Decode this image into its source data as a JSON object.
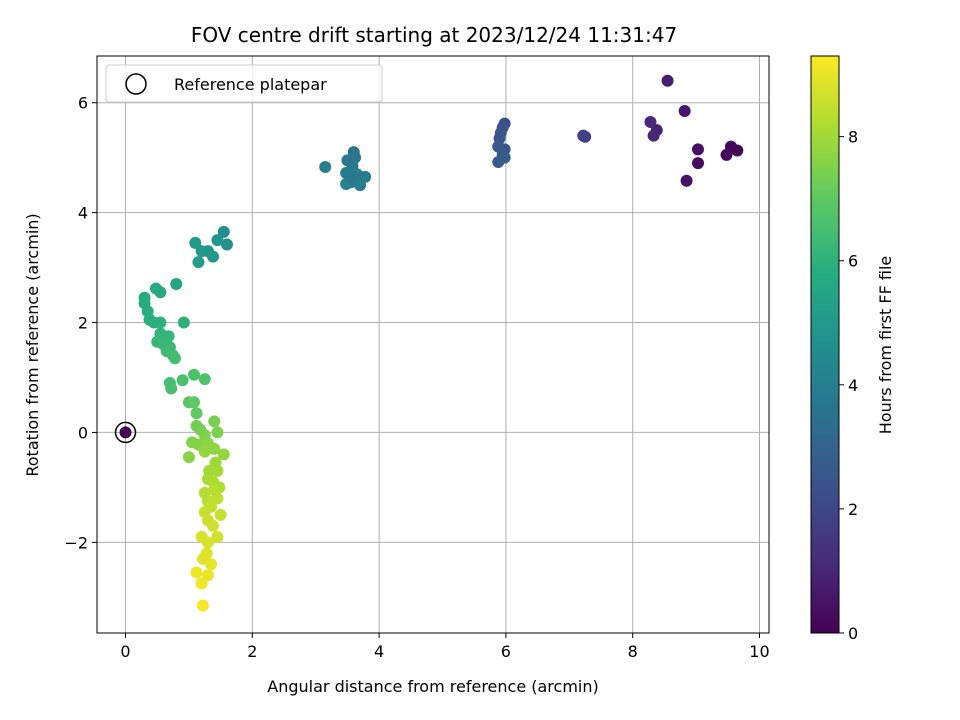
{
  "chart_data": {
    "type": "scatter",
    "title": "FOV centre drift starting at 2023/12/24 11:31:47",
    "xlabel": "Angular distance from reference (arcmin)",
    "ylabel": "Rotation from reference (arcmin)",
    "xlim": [
      -0.45,
      10.15
    ],
    "ylim": [
      -3.65,
      6.85
    ],
    "xticks": [
      0,
      2,
      4,
      6,
      8,
      10
    ],
    "yticks": [
      -2,
      0,
      2,
      4,
      6
    ],
    "xtick_labels": [
      "0",
      "2",
      "4",
      "6",
      "8",
      "10"
    ],
    "ytick_labels": [
      "−2",
      "0",
      "2",
      "4",
      "6"
    ],
    "grid": true,
    "legend": {
      "placement": "top-left",
      "entries": [
        "Reference platepar"
      ]
    },
    "colorbar": {
      "label": "Hours from first FF file",
      "range": [
        0,
        9.3
      ],
      "ticks": [
        0,
        2,
        4,
        6,
        8
      ],
      "tick_labels": [
        "0",
        "2",
        "4",
        "6",
        "8"
      ],
      "colormap": "viridis"
    },
    "reference": {
      "x": 0,
      "y": 0
    },
    "points": [
      [
        0,
        0,
        0
      ],
      [
        9.65,
        5.13,
        0.1
      ],
      [
        9.55,
        5.2,
        0.15
      ],
      [
        9.48,
        5.05,
        0.2
      ],
      [
        9.03,
        4.9,
        0.3
      ],
      [
        9.03,
        5.15,
        0.4
      ],
      [
        8.85,
        4.58,
        0.5
      ],
      [
        8.82,
        5.85,
        0.6
      ],
      [
        8.55,
        6.4,
        0.8
      ],
      [
        8.38,
        5.5,
        0.9
      ],
      [
        8.33,
        5.4,
        1.0
      ],
      [
        8.28,
        5.65,
        1.1
      ],
      [
        7.25,
        5.38,
        1.8
      ],
      [
        7.22,
        5.4,
        1.85
      ],
      [
        5.98,
        5.62,
        2.3
      ],
      [
        5.95,
        5.55,
        2.35
      ],
      [
        5.92,
        5.45,
        2.4
      ],
      [
        5.9,
        5.35,
        2.45
      ],
      [
        5.98,
        5.15,
        2.5
      ],
      [
        5.95,
        5.05,
        2.55
      ],
      [
        5.88,
        5.2,
        2.6
      ],
      [
        5.88,
        4.92,
        2.7
      ],
      [
        5.98,
        5.0,
        2.75
      ],
      [
        3.6,
        5.1,
        3.6
      ],
      [
        3.62,
        5.0,
        3.65
      ],
      [
        3.5,
        4.95,
        3.7
      ],
      [
        3.58,
        4.85,
        3.75
      ],
      [
        3.48,
        4.72,
        3.8
      ],
      [
        3.65,
        4.7,
        3.85
      ],
      [
        3.78,
        4.65,
        3.9
      ],
      [
        3.55,
        4.55,
        3.95
      ],
      [
        3.7,
        4.5,
        4.0
      ],
      [
        3.48,
        4.52,
        4.05
      ],
      [
        3.15,
        4.83,
        4.0
      ],
      [
        3.6,
        4.62,
        3.8
      ],
      [
        1.55,
        3.65,
        4.6
      ],
      [
        1.6,
        3.42,
        4.7
      ],
      [
        1.45,
        3.5,
        4.8
      ],
      [
        1.3,
        3.3,
        4.9
      ],
      [
        1.38,
        3.2,
        4.95
      ],
      [
        1.2,
        3.3,
        5.0
      ],
      [
        1.1,
        3.45,
        5.05
      ],
      [
        1.15,
        3.1,
        5.1
      ],
      [
        0.8,
        2.7,
        5.5
      ],
      [
        0.48,
        2.62,
        5.6
      ],
      [
        0.55,
        2.55,
        5.65
      ],
      [
        0.3,
        2.45,
        5.7
      ],
      [
        0.3,
        2.35,
        5.75
      ],
      [
        0.35,
        2.2,
        5.8
      ],
      [
        0.38,
        2.05,
        5.85
      ],
      [
        0.45,
        2.0,
        5.9
      ],
      [
        0.55,
        2.0,
        5.95
      ],
      [
        0.92,
        2.0,
        6.0
      ],
      [
        0.55,
        1.8,
        6.1
      ],
      [
        0.68,
        1.75,
        6.15
      ],
      [
        0.5,
        1.65,
        6.2
      ],
      [
        0.6,
        1.6,
        6.25
      ],
      [
        0.7,
        1.55,
        6.3
      ],
      [
        0.65,
        1.48,
        6.35
      ],
      [
        0.75,
        1.4,
        6.4
      ],
      [
        0.78,
        1.35,
        6.45
      ],
      [
        0.7,
        0.9,
        6.5
      ],
      [
        0.72,
        0.8,
        6.55
      ],
      [
        0.9,
        0.95,
        6.6
      ],
      [
        1.08,
        1.05,
        6.65
      ],
      [
        1.25,
        0.97,
        6.7
      ],
      [
        1.0,
        0.55,
        6.9
      ],
      [
        1.08,
        0.55,
        7.0
      ],
      [
        1.12,
        0.35,
        7.05
      ],
      [
        1.12,
        0.12,
        7.3
      ],
      [
        1.18,
        0.05,
        7.35
      ],
      [
        1.4,
        0.2,
        7.4
      ],
      [
        1.45,
        0.0,
        7.45
      ],
      [
        1.25,
        -0.05,
        7.5
      ],
      [
        1.05,
        -0.18,
        7.55
      ],
      [
        1.15,
        -0.22,
        7.6
      ],
      [
        1.3,
        -0.2,
        7.65
      ],
      [
        1.0,
        -0.45,
        7.7
      ],
      [
        1.4,
        -0.3,
        7.75
      ],
      [
        1.55,
        -0.4,
        7.8
      ],
      [
        1.25,
        -0.35,
        7.85
      ],
      [
        1.42,
        -0.55,
        7.9
      ],
      [
        1.32,
        -0.7,
        8.0
      ],
      [
        1.45,
        -0.7,
        8.05
      ],
      [
        1.3,
        -0.85,
        8.1
      ],
      [
        1.38,
        -0.9,
        8.15
      ],
      [
        1.48,
        -1.0,
        8.2
      ],
      [
        1.25,
        -1.1,
        8.25
      ],
      [
        1.4,
        -1.05,
        8.3
      ],
      [
        1.3,
        -1.25,
        8.35
      ],
      [
        1.45,
        -1.2,
        8.4
      ],
      [
        1.35,
        -1.35,
        8.45
      ],
      [
        1.25,
        -1.45,
        8.5
      ],
      [
        1.5,
        -1.5,
        8.55
      ],
      [
        1.3,
        -1.6,
        8.6
      ],
      [
        1.38,
        -1.7,
        8.65
      ],
      [
        1.45,
        -1.9,
        8.7
      ],
      [
        1.2,
        -1.9,
        8.75
      ],
      [
        1.3,
        -2.0,
        8.8
      ],
      [
        1.28,
        -2.2,
        8.85
      ],
      [
        1.22,
        -2.3,
        8.9
      ],
      [
        1.35,
        -2.4,
        9.0
      ],
      [
        1.3,
        -2.6,
        9.05
      ],
      [
        1.12,
        -2.55,
        9.1
      ],
      [
        1.2,
        -2.75,
        9.15
      ],
      [
        1.22,
        -3.15,
        9.25
      ]
    ]
  }
}
